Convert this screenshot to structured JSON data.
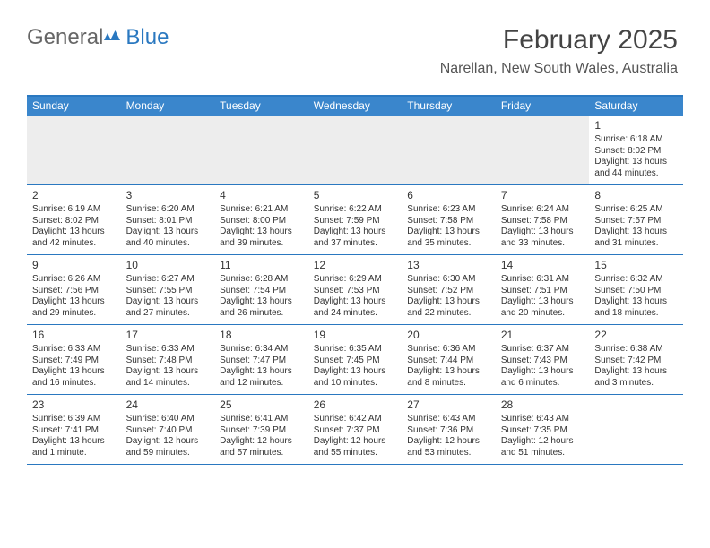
{
  "logo": {
    "general": "General",
    "blue": "Blue"
  },
  "title": "February 2025",
  "location": "Narellan, New South Wales, Australia",
  "colors": {
    "header_bg": "#3a86cc",
    "border": "#2a78c0",
    "first_week_bg": "#ededed",
    "text": "#333333"
  },
  "day_headers": [
    "Sunday",
    "Monday",
    "Tuesday",
    "Wednesday",
    "Thursday",
    "Friday",
    "Saturday"
  ],
  "weeks": [
    [
      {},
      {},
      {},
      {},
      {},
      {},
      {
        "n": "1",
        "sr": "Sunrise: 6:18 AM",
        "ss": "Sunset: 8:02 PM",
        "dl1": "Daylight: 13 hours",
        "dl2": "and 44 minutes."
      }
    ],
    [
      {
        "n": "2",
        "sr": "Sunrise: 6:19 AM",
        "ss": "Sunset: 8:02 PM",
        "dl1": "Daylight: 13 hours",
        "dl2": "and 42 minutes."
      },
      {
        "n": "3",
        "sr": "Sunrise: 6:20 AM",
        "ss": "Sunset: 8:01 PM",
        "dl1": "Daylight: 13 hours",
        "dl2": "and 40 minutes."
      },
      {
        "n": "4",
        "sr": "Sunrise: 6:21 AM",
        "ss": "Sunset: 8:00 PM",
        "dl1": "Daylight: 13 hours",
        "dl2": "and 39 minutes."
      },
      {
        "n": "5",
        "sr": "Sunrise: 6:22 AM",
        "ss": "Sunset: 7:59 PM",
        "dl1": "Daylight: 13 hours",
        "dl2": "and 37 minutes."
      },
      {
        "n": "6",
        "sr": "Sunrise: 6:23 AM",
        "ss": "Sunset: 7:58 PM",
        "dl1": "Daylight: 13 hours",
        "dl2": "and 35 minutes."
      },
      {
        "n": "7",
        "sr": "Sunrise: 6:24 AM",
        "ss": "Sunset: 7:58 PM",
        "dl1": "Daylight: 13 hours",
        "dl2": "and 33 minutes."
      },
      {
        "n": "8",
        "sr": "Sunrise: 6:25 AM",
        "ss": "Sunset: 7:57 PM",
        "dl1": "Daylight: 13 hours",
        "dl2": "and 31 minutes."
      }
    ],
    [
      {
        "n": "9",
        "sr": "Sunrise: 6:26 AM",
        "ss": "Sunset: 7:56 PM",
        "dl1": "Daylight: 13 hours",
        "dl2": "and 29 minutes."
      },
      {
        "n": "10",
        "sr": "Sunrise: 6:27 AM",
        "ss": "Sunset: 7:55 PM",
        "dl1": "Daylight: 13 hours",
        "dl2": "and 27 minutes."
      },
      {
        "n": "11",
        "sr": "Sunrise: 6:28 AM",
        "ss": "Sunset: 7:54 PM",
        "dl1": "Daylight: 13 hours",
        "dl2": "and 26 minutes."
      },
      {
        "n": "12",
        "sr": "Sunrise: 6:29 AM",
        "ss": "Sunset: 7:53 PM",
        "dl1": "Daylight: 13 hours",
        "dl2": "and 24 minutes."
      },
      {
        "n": "13",
        "sr": "Sunrise: 6:30 AM",
        "ss": "Sunset: 7:52 PM",
        "dl1": "Daylight: 13 hours",
        "dl2": "and 22 minutes."
      },
      {
        "n": "14",
        "sr": "Sunrise: 6:31 AM",
        "ss": "Sunset: 7:51 PM",
        "dl1": "Daylight: 13 hours",
        "dl2": "and 20 minutes."
      },
      {
        "n": "15",
        "sr": "Sunrise: 6:32 AM",
        "ss": "Sunset: 7:50 PM",
        "dl1": "Daylight: 13 hours",
        "dl2": "and 18 minutes."
      }
    ],
    [
      {
        "n": "16",
        "sr": "Sunrise: 6:33 AM",
        "ss": "Sunset: 7:49 PM",
        "dl1": "Daylight: 13 hours",
        "dl2": "and 16 minutes."
      },
      {
        "n": "17",
        "sr": "Sunrise: 6:33 AM",
        "ss": "Sunset: 7:48 PM",
        "dl1": "Daylight: 13 hours",
        "dl2": "and 14 minutes."
      },
      {
        "n": "18",
        "sr": "Sunrise: 6:34 AM",
        "ss": "Sunset: 7:47 PM",
        "dl1": "Daylight: 13 hours",
        "dl2": "and 12 minutes."
      },
      {
        "n": "19",
        "sr": "Sunrise: 6:35 AM",
        "ss": "Sunset: 7:45 PM",
        "dl1": "Daylight: 13 hours",
        "dl2": "and 10 minutes."
      },
      {
        "n": "20",
        "sr": "Sunrise: 6:36 AM",
        "ss": "Sunset: 7:44 PM",
        "dl1": "Daylight: 13 hours",
        "dl2": "and 8 minutes."
      },
      {
        "n": "21",
        "sr": "Sunrise: 6:37 AM",
        "ss": "Sunset: 7:43 PM",
        "dl1": "Daylight: 13 hours",
        "dl2": "and 6 minutes."
      },
      {
        "n": "22",
        "sr": "Sunrise: 6:38 AM",
        "ss": "Sunset: 7:42 PM",
        "dl1": "Daylight: 13 hours",
        "dl2": "and 3 minutes."
      }
    ],
    [
      {
        "n": "23",
        "sr": "Sunrise: 6:39 AM",
        "ss": "Sunset: 7:41 PM",
        "dl1": "Daylight: 13 hours",
        "dl2": "and 1 minute."
      },
      {
        "n": "24",
        "sr": "Sunrise: 6:40 AM",
        "ss": "Sunset: 7:40 PM",
        "dl1": "Daylight: 12 hours",
        "dl2": "and 59 minutes."
      },
      {
        "n": "25",
        "sr": "Sunrise: 6:41 AM",
        "ss": "Sunset: 7:39 PM",
        "dl1": "Daylight: 12 hours",
        "dl2": "and 57 minutes."
      },
      {
        "n": "26",
        "sr": "Sunrise: 6:42 AM",
        "ss": "Sunset: 7:37 PM",
        "dl1": "Daylight: 12 hours",
        "dl2": "and 55 minutes."
      },
      {
        "n": "27",
        "sr": "Sunrise: 6:43 AM",
        "ss": "Sunset: 7:36 PM",
        "dl1": "Daylight: 12 hours",
        "dl2": "and 53 minutes."
      },
      {
        "n": "28",
        "sr": "Sunrise: 6:43 AM",
        "ss": "Sunset: 7:35 PM",
        "dl1": "Daylight: 12 hours",
        "dl2": "and 51 minutes."
      },
      {}
    ]
  ]
}
